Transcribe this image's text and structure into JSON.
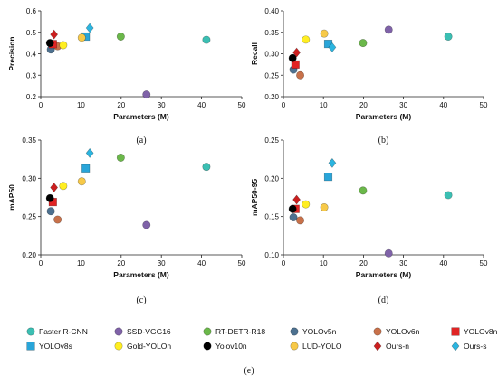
{
  "colors": {
    "Faster R-CNN": "#3bbfb3",
    "SSD-VGG16": "#7f62a8",
    "RT-DETR-R18": "#6bb84a",
    "YOLOv5n": "#4d7190",
    "YOLOv6n": "#c8714a",
    "YOLOv8n": "#e02424",
    "YOLOv8s": "#29a5d9",
    "Gold-YOLOn": "#ffee22",
    "Yolov10n": "#000000",
    "LUD-YOLO": "#f7c948",
    "Ours-n": "#cc1f1f",
    "Ours-s": "#2bb5e0"
  },
  "markers": {
    "Faster R-CNN": "circle",
    "SSD-VGG16": "circle",
    "RT-DETR-R18": "circle",
    "YOLOv5n": "circle",
    "YOLOv6n": "circle",
    "YOLOv8n": "square",
    "YOLOv8s": "square",
    "Gold-YOLOn": "circle",
    "Yolov10n": "circle",
    "LUD-YOLO": "circle",
    "Ours-n": "diamond",
    "Ours-s": "diamond"
  },
  "legend": {
    "caption": "(e)",
    "items": [
      "Faster R-CNN",
      "SSD-VGG16",
      "RT-DETR-R18",
      "YOLOv5n",
      "YOLOv6n",
      "YOLOv8n",
      "YOLOv8s",
      "Gold-YOLOn",
      "Yolov10n",
      "LUD-YOLO",
      "Ours-n",
      "Ours-s"
    ]
  },
  "chart_data": [
    {
      "type": "scatter",
      "caption": "(a)",
      "xlabel": "Parameters (M)",
      "ylabel": "Precision",
      "xlim": [
        0,
        50
      ],
      "ylim": [
        0.2,
        0.6
      ],
      "xticks": [
        0,
        10,
        20,
        30,
        40,
        50
      ],
      "yticks": [
        0.2,
        0.3,
        0.4,
        0.5,
        0.6
      ],
      "ytick_labels": [
        "0.2",
        "0.3",
        "0.4",
        "0.5",
        "0.6"
      ],
      "grid": false,
      "points": [
        {
          "name": "Faster R-CNN",
          "x": 41.2,
          "y": 0.465
        },
        {
          "name": "SSD-VGG16",
          "x": 26.3,
          "y": 0.21
        },
        {
          "name": "RT-DETR-R18",
          "x": 19.9,
          "y": 0.48
        },
        {
          "name": "YOLOv5n",
          "x": 2.5,
          "y": 0.42
        },
        {
          "name": "YOLOv6n",
          "x": 4.2,
          "y": 0.435
        },
        {
          "name": "YOLOv8n",
          "x": 3.0,
          "y": 0.445
        },
        {
          "name": "YOLOv8s",
          "x": 11.2,
          "y": 0.48
        },
        {
          "name": "Gold-YOLOn",
          "x": 5.6,
          "y": 0.44
        },
        {
          "name": "Yolov10n",
          "x": 2.3,
          "y": 0.45
        },
        {
          "name": "LUD-YOLO",
          "x": 10.2,
          "y": 0.475
        },
        {
          "name": "Ours-n",
          "x": 3.3,
          "y": 0.49
        },
        {
          "name": "Ours-s",
          "x": 12.2,
          "y": 0.52
        }
      ]
    },
    {
      "type": "scatter",
      "caption": "(b)",
      "xlabel": "Parameters (M)",
      "ylabel": "Recall",
      "xlim": [
        0,
        50
      ],
      "ylim": [
        0.2,
        0.4
      ],
      "xticks": [
        0,
        10,
        20,
        30,
        40,
        50
      ],
      "yticks": [
        0.2,
        0.25,
        0.3,
        0.35,
        0.4
      ],
      "ytick_labels": [
        "0.20",
        "0.25",
        "0.30",
        "0.35",
        "0.40"
      ],
      "grid": false,
      "points": [
        {
          "name": "Faster R-CNN",
          "x": 41.2,
          "y": 0.34
        },
        {
          "name": "SSD-VGG16",
          "x": 26.3,
          "y": 0.356
        },
        {
          "name": "RT-DETR-R18",
          "x": 19.9,
          "y": 0.325
        },
        {
          "name": "YOLOv5n",
          "x": 2.5,
          "y": 0.263
        },
        {
          "name": "YOLOv6n",
          "x": 4.2,
          "y": 0.25
        },
        {
          "name": "YOLOv8n",
          "x": 3.0,
          "y": 0.275
        },
        {
          "name": "YOLOv8s",
          "x": 11.2,
          "y": 0.323
        },
        {
          "name": "Gold-YOLOn",
          "x": 5.6,
          "y": 0.333
        },
        {
          "name": "Yolov10n",
          "x": 2.3,
          "y": 0.29
        },
        {
          "name": "LUD-YOLO",
          "x": 10.2,
          "y": 0.347
        },
        {
          "name": "Ours-n",
          "x": 3.3,
          "y": 0.303
        },
        {
          "name": "Ours-s",
          "x": 12.2,
          "y": 0.315
        }
      ]
    },
    {
      "type": "scatter",
      "caption": "(c)",
      "xlabel": "Parameters (M)",
      "ylabel": "mAP50",
      "xlim": [
        0,
        50
      ],
      "ylim": [
        0.2,
        0.35
      ],
      "xticks": [
        0,
        10,
        20,
        30,
        40,
        50
      ],
      "yticks": [
        0.2,
        0.25,
        0.3,
        0.35
      ],
      "ytick_labels": [
        "0.20",
        "0.25",
        "0.30",
        "0.35"
      ],
      "grid": false,
      "points": [
        {
          "name": "Faster R-CNN",
          "x": 41.2,
          "y": 0.315
        },
        {
          "name": "SSD-VGG16",
          "x": 26.3,
          "y": 0.239
        },
        {
          "name": "RT-DETR-R18",
          "x": 19.9,
          "y": 0.327
        },
        {
          "name": "YOLOv5n",
          "x": 2.5,
          "y": 0.257
        },
        {
          "name": "YOLOv6n",
          "x": 4.2,
          "y": 0.246
        },
        {
          "name": "YOLOv8n",
          "x": 3.0,
          "y": 0.269
        },
        {
          "name": "YOLOv8s",
          "x": 11.2,
          "y": 0.313
        },
        {
          "name": "Gold-YOLOn",
          "x": 5.6,
          "y": 0.29
        },
        {
          "name": "Yolov10n",
          "x": 2.3,
          "y": 0.274
        },
        {
          "name": "LUD-YOLO",
          "x": 10.2,
          "y": 0.296
        },
        {
          "name": "Ours-n",
          "x": 3.3,
          "y": 0.288
        },
        {
          "name": "Ours-s",
          "x": 12.2,
          "y": 0.333
        }
      ]
    },
    {
      "type": "scatter",
      "caption": "(d)",
      "xlabel": "Parameters (M)",
      "ylabel": "mAP50-95",
      "xlim": [
        0,
        50
      ],
      "ylim": [
        0.1,
        0.25
      ],
      "xticks": [
        0,
        10,
        20,
        30,
        40,
        50
      ],
      "yticks": [
        0.1,
        0.15,
        0.2,
        0.25
      ],
      "ytick_labels": [
        "0.10",
        "0.15",
        "0.20",
        "0.25"
      ],
      "grid": false,
      "points": [
        {
          "name": "Faster R-CNN",
          "x": 41.2,
          "y": 0.178
        },
        {
          "name": "SSD-VGG16",
          "x": 26.3,
          "y": 0.102
        },
        {
          "name": "RT-DETR-R18",
          "x": 19.9,
          "y": 0.184
        },
        {
          "name": "YOLOv5n",
          "x": 2.5,
          "y": 0.149
        },
        {
          "name": "YOLOv6n",
          "x": 4.2,
          "y": 0.145
        },
        {
          "name": "YOLOv8n",
          "x": 3.0,
          "y": 0.16
        },
        {
          "name": "YOLOv8s",
          "x": 11.2,
          "y": 0.202
        },
        {
          "name": "Gold-YOLOn",
          "x": 5.6,
          "y": 0.166
        },
        {
          "name": "Yolov10n",
          "x": 2.3,
          "y": 0.16
        },
        {
          "name": "LUD-YOLO",
          "x": 10.2,
          "y": 0.162
        },
        {
          "name": "Ours-n",
          "x": 3.3,
          "y": 0.172
        },
        {
          "name": "Ours-s",
          "x": 12.2,
          "y": 0.22
        }
      ]
    }
  ]
}
